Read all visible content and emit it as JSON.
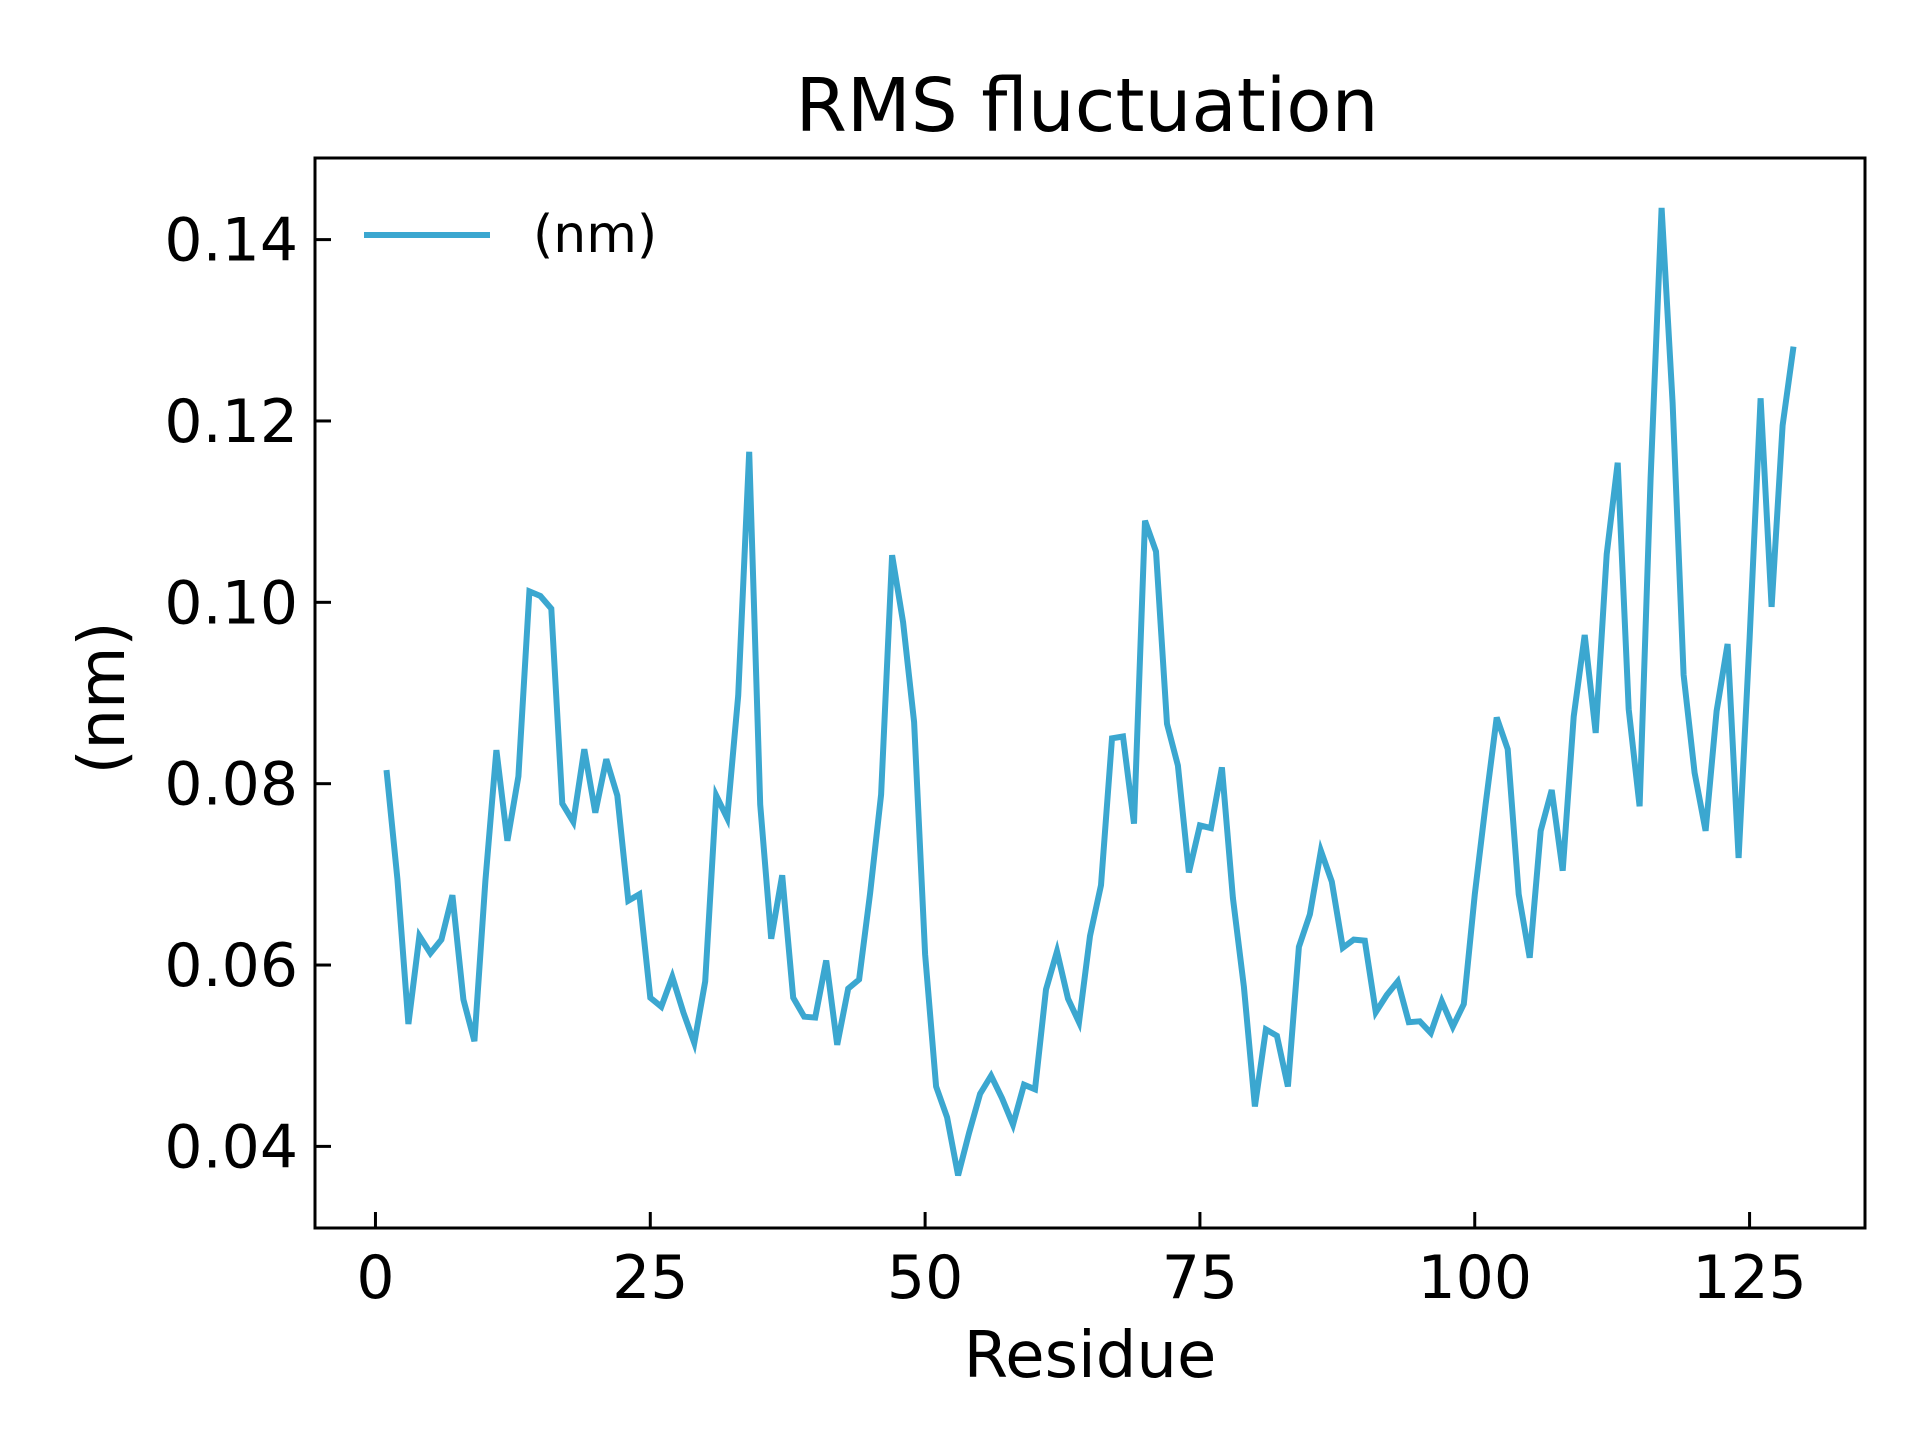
{
  "chart_data": {
    "type": "line",
    "title": "RMS fluctuation",
    "xlabel": "Residue",
    "ylabel": "(nm)",
    "xlim": [
      -5.5,
      135.5
    ],
    "ylim": [
      0.031,
      0.149
    ],
    "xticks": [
      0,
      25,
      50,
      75,
      100,
      125
    ],
    "yticks": [
      0.04,
      0.06,
      0.08,
      0.1,
      0.12,
      0.14
    ],
    "ytick_labels": [
      "0.04",
      "0.06",
      "0.08",
      "0.10",
      "0.12",
      "0.14"
    ],
    "grid": false,
    "legend_position": "top-left",
    "series": [
      {
        "name": "(nm)",
        "color": "#3ba7d0",
        "x": [
          1,
          2,
          3,
          4,
          5,
          6,
          7,
          8,
          9,
          10,
          11,
          12,
          13,
          14,
          15,
          16,
          17,
          18,
          19,
          20,
          21,
          22,
          23,
          24,
          25,
          26,
          27,
          28,
          29,
          30,
          31,
          32,
          33,
          34,
          35,
          36,
          37,
          38,
          39,
          40,
          41,
          42,
          43,
          44,
          45,
          46,
          47,
          48,
          49,
          50,
          51,
          52,
          53,
          54,
          55,
          56,
          57,
          58,
          59,
          60,
          61,
          62,
          63,
          64,
          65,
          66,
          67,
          68,
          69,
          70,
          71,
          72,
          73,
          74,
          75,
          76,
          77,
          78,
          79,
          80,
          81,
          82,
          83,
          84,
          85,
          86,
          87,
          88,
          89,
          90,
          91,
          92,
          93,
          94,
          95,
          96,
          97,
          98,
          99,
          100,
          101,
          102,
          103,
          104,
          105,
          106,
          107,
          108,
          109,
          110,
          111,
          112,
          113,
          114,
          115,
          116,
          117,
          118,
          119,
          120,
          121,
          122,
          123,
          124,
          125,
          126,
          127,
          128,
          129
        ],
        "y": [
          0.0815,
          0.0695,
          0.0535,
          0.0632,
          0.0613,
          0.0628,
          0.0677,
          0.0562,
          0.0516,
          0.0693,
          0.0837,
          0.0737,
          0.0808,
          0.1012,
          0.1007,
          0.0993,
          0.0778,
          0.0758,
          0.0838,
          0.0768,
          0.0827,
          0.0787,
          0.0671,
          0.0678,
          0.0564,
          0.0554,
          0.0587,
          0.0548,
          0.0514,
          0.0582,
          0.0787,
          0.0762,
          0.0897,
          0.1166,
          0.0777,
          0.0629,
          0.0699,
          0.0564,
          0.0543,
          0.0542,
          0.0605,
          0.0512,
          0.0574,
          0.0584,
          0.0679,
          0.0788,
          0.1052,
          0.0978,
          0.0868,
          0.0612,
          0.0466,
          0.0432,
          0.0368,
          0.0415,
          0.0458,
          0.0478,
          0.0453,
          0.0424,
          0.0468,
          0.0463,
          0.0573,
          0.0615,
          0.0563,
          0.0537,
          0.0632,
          0.0688,
          0.085,
          0.0852,
          0.0756,
          0.109,
          0.1056,
          0.0866,
          0.082,
          0.0702,
          0.0754,
          0.0751,
          0.0818,
          0.0674,
          0.0576,
          0.0444,
          0.0529,
          0.0522,
          0.0466,
          0.062,
          0.0656,
          0.0726,
          0.0692,
          0.0619,
          0.0628,
          0.0627,
          0.0548,
          0.0567,
          0.0582,
          0.0537,
          0.0538,
          0.0525,
          0.056,
          0.0532,
          0.0557,
          0.0678,
          0.0778,
          0.0873,
          0.0838,
          0.0678,
          0.0608,
          0.0748,
          0.0793,
          0.0704,
          0.0874,
          0.0964,
          0.0856,
          0.1053,
          0.1154,
          0.0882,
          0.0775,
          0.1137,
          0.1435,
          0.122,
          0.092,
          0.0812,
          0.0748,
          0.088,
          0.0954,
          0.0718,
          0.096,
          0.1225,
          0.0995,
          0.1195,
          0.1282
        ]
      }
    ]
  }
}
